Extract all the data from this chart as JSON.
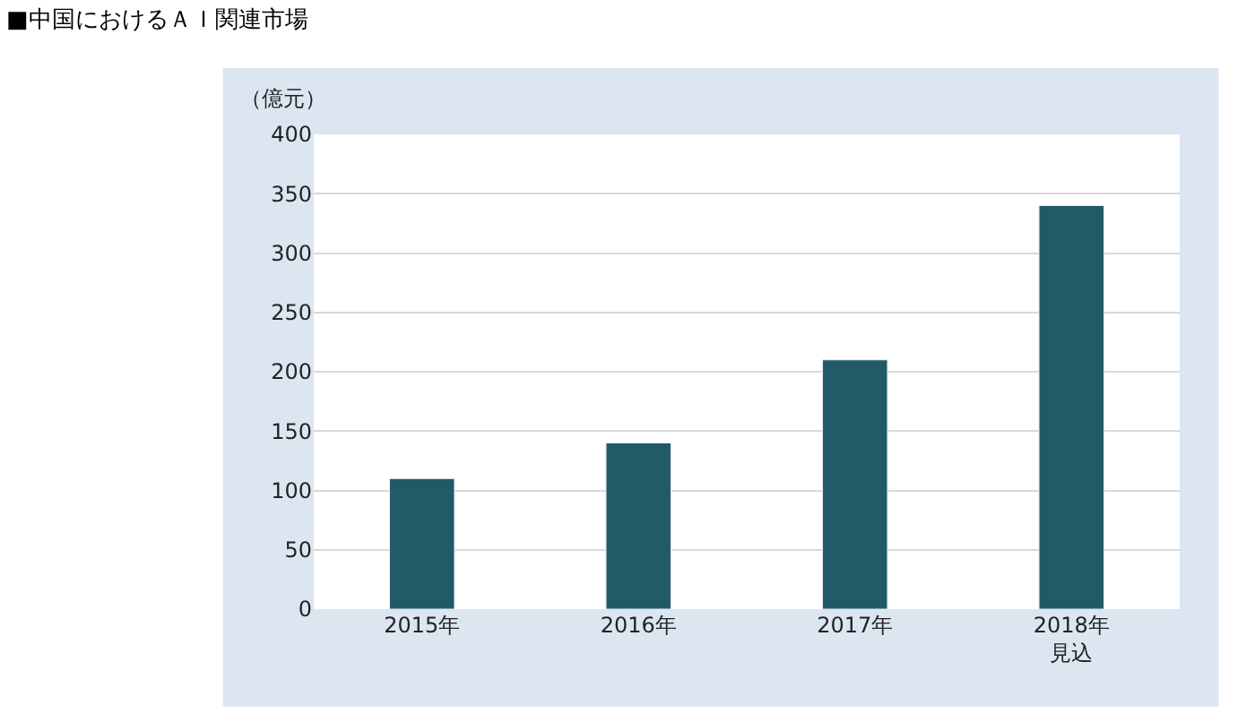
{
  "chart_data": {
    "type": "bar",
    "title": "■中国におけるＡＩ関連市場",
    "ylabel": "（億元）",
    "categories": [
      "2015年",
      "2016年",
      "2017年",
      "2018年見込"
    ],
    "values": [
      110,
      140,
      210,
      340
    ],
    "color": "#235a67",
    "ylim": [
      0,
      400
    ],
    "yticks": [
      0,
      50,
      100,
      150,
      200,
      250,
      300,
      350,
      400
    ],
    "grid": "y"
  }
}
